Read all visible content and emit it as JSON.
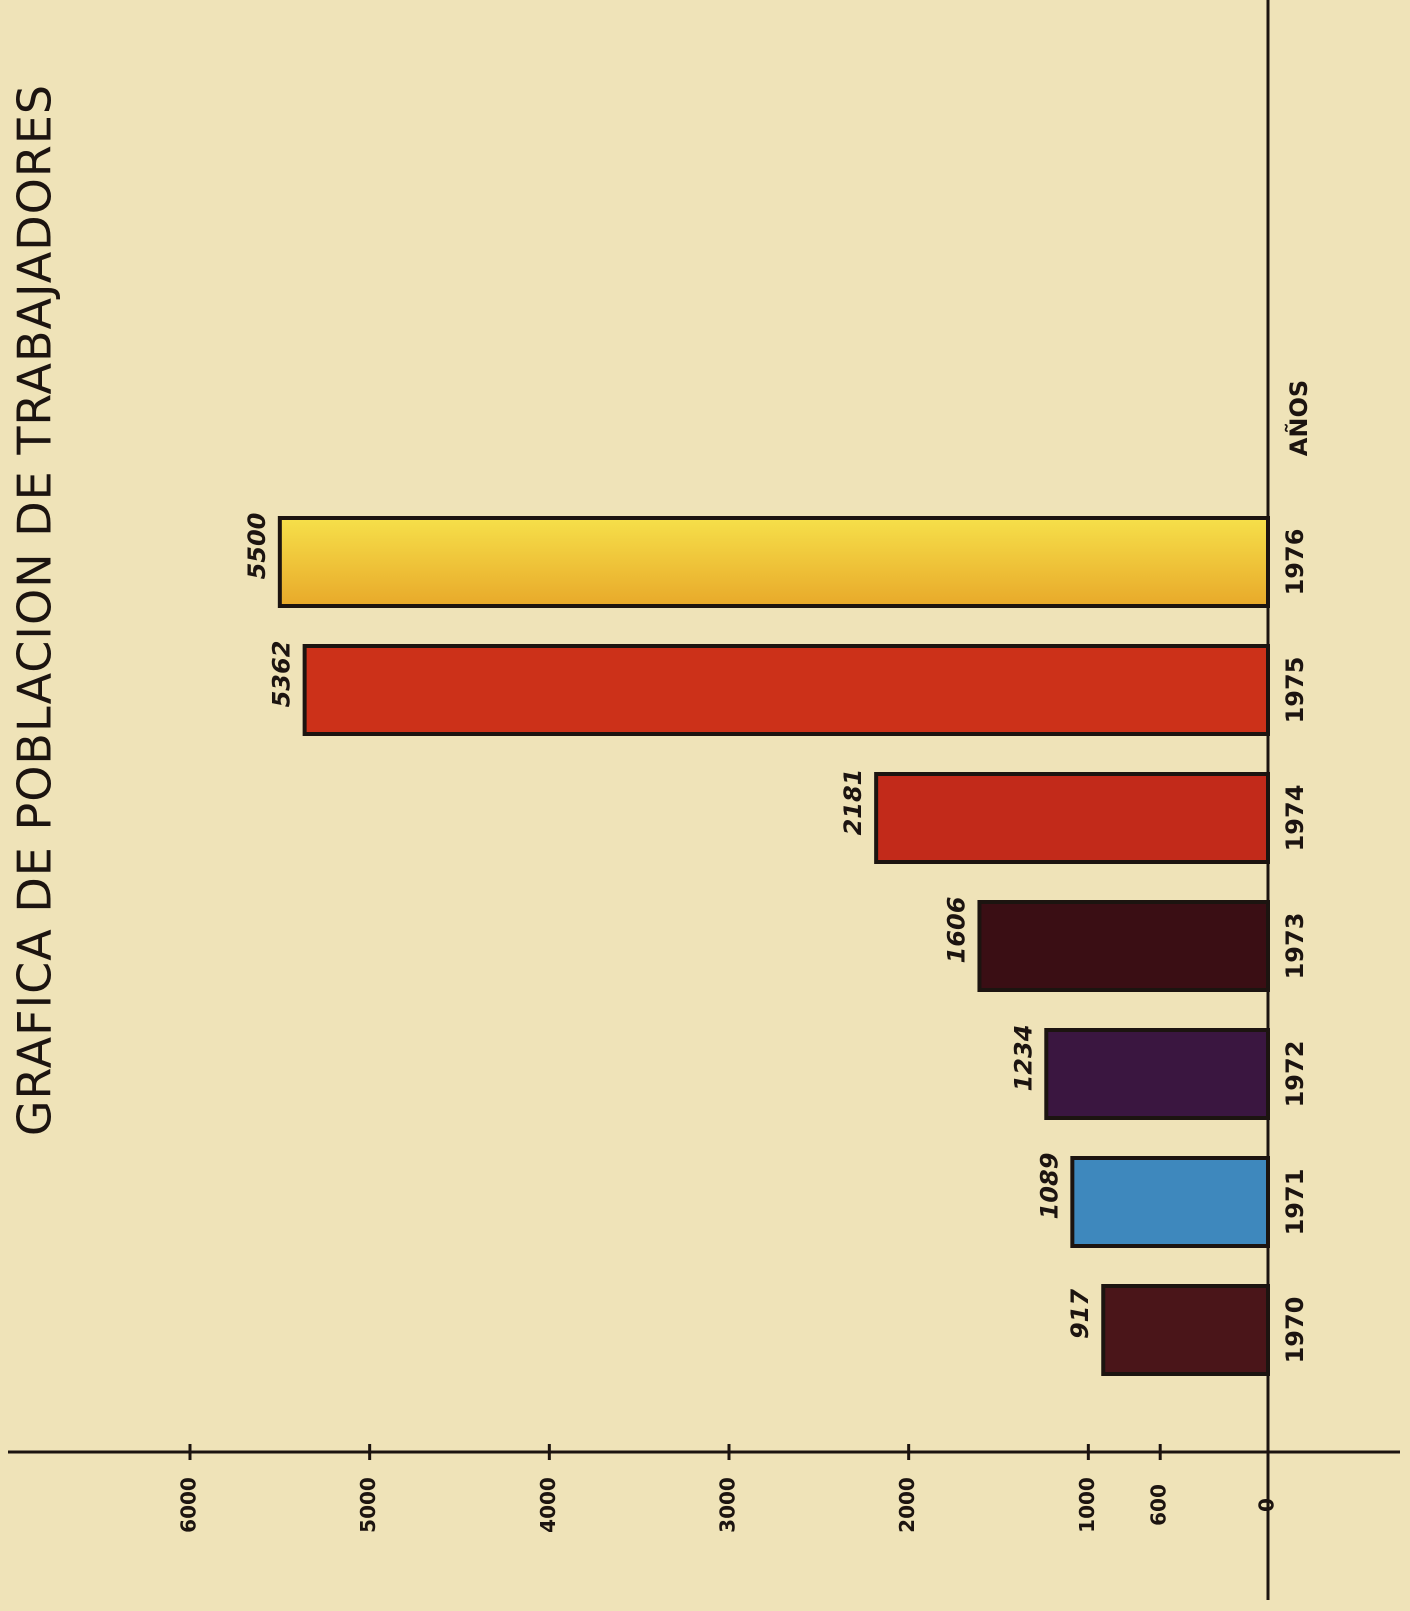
{
  "chart_data": {
    "type": "bar",
    "orientation": "horizontal",
    "title": "GRAFICA DE POBLACION DE TRABAJADORES",
    "x_label": "AÑOS",
    "categories": [
      "1970",
      "1971",
      "1972",
      "1973",
      "1974",
      "1975",
      "1976"
    ],
    "values": [
      917,
      1089,
      1234,
      1606,
      2181,
      5362,
      5500
    ],
    "colors": [
      "#4a1519",
      "#3e88bd",
      "#3a1640",
      "#3a0e14",
      "#c22a1a",
      "#cc3119",
      "#f0c431"
    ],
    "ylim": [
      0,
      6000
    ],
    "yticks": [
      0,
      600,
      1000,
      2000,
      3000,
      4000,
      5000,
      6000
    ]
  }
}
